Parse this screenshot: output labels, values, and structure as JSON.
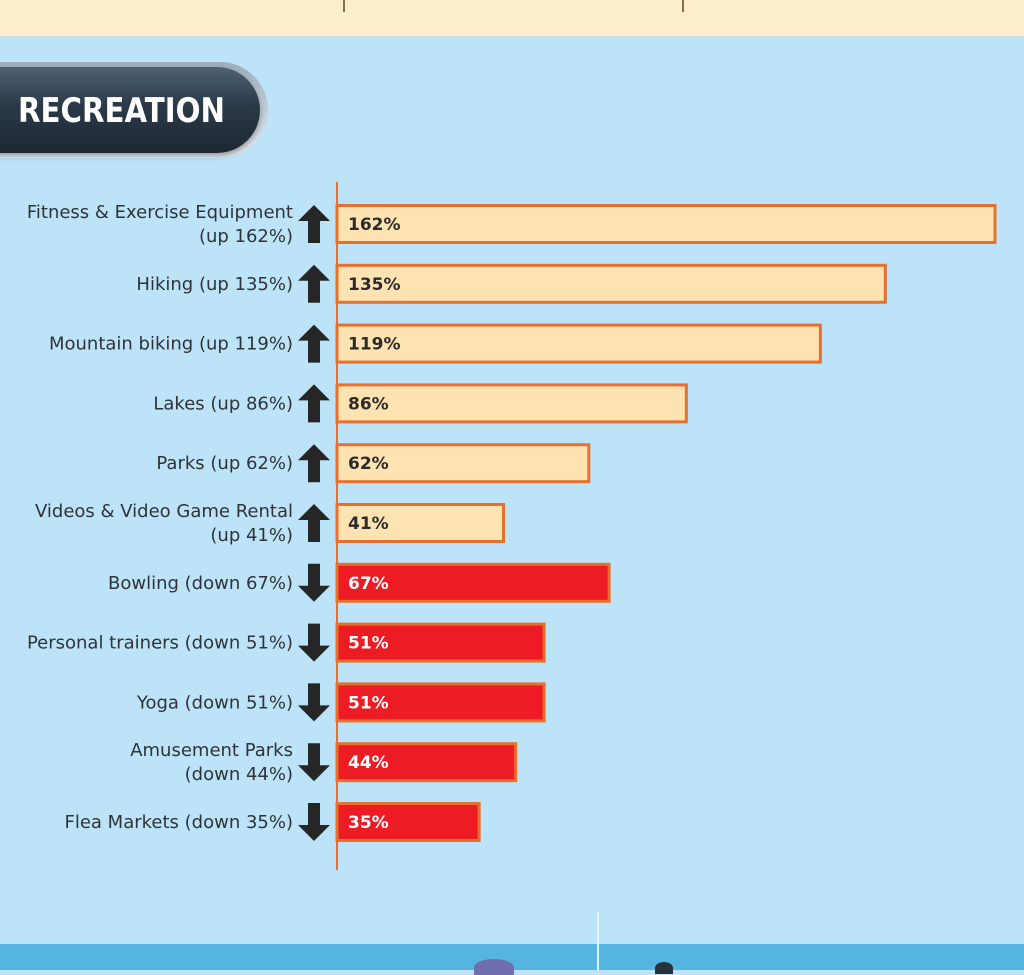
{
  "section": {
    "title": "RECREATION"
  },
  "colors": {
    "background": "#bde3f8",
    "up_fill": "#fde2b2",
    "down_fill": "#ed1c24",
    "bar_stroke": "#e8702e",
    "axis": "#e8702e",
    "arrow": "#262626",
    "up_text": "#2b2b2b",
    "down_text": "#ffffff"
  },
  "chart_data": {
    "type": "bar",
    "orientation": "horizontal",
    "title": "RECREATION",
    "xlim": [
      0,
      162
    ],
    "grid": false,
    "categories": [
      {
        "label": [
          "Fitness & Exercise Equipment",
          "(up 162%)"
        ],
        "value": 162,
        "direction": "up",
        "value_label": "162%"
      },
      {
        "label": [
          "Hiking (up 135%)"
        ],
        "value": 135,
        "direction": "up",
        "value_label": "135%"
      },
      {
        "label": [
          "Mountain biking (up 119%)"
        ],
        "value": 119,
        "direction": "up",
        "value_label": "119%"
      },
      {
        "label": [
          "Lakes (up 86%)"
        ],
        "value": 86,
        "direction": "up",
        "value_label": "86%"
      },
      {
        "label": [
          "Parks (up 62%)"
        ],
        "value": 62,
        "direction": "up",
        "value_label": "62%"
      },
      {
        "label": [
          "Videos & Video Game Rental",
          "(up 41%)"
        ],
        "value": 41,
        "direction": "up",
        "value_label": "41%"
      },
      {
        "label": [
          "Bowling (down 67%)"
        ],
        "value": 67,
        "direction": "down",
        "value_label": "67%"
      },
      {
        "label": [
          "Personal trainers (down 51%)"
        ],
        "value": 51,
        "direction": "down",
        "value_label": "51%"
      },
      {
        "label": [
          "Yoga (down 51%)"
        ],
        "value": 51,
        "direction": "down",
        "value_label": "51%"
      },
      {
        "label": [
          "Amusement Parks",
          "(down 44%)"
        ],
        "value": 44,
        "direction": "down",
        "value_label": "44%"
      },
      {
        "label": [
          "Flea Markets (down 35%)"
        ],
        "value": 35,
        "direction": "down",
        "value_label": "35%"
      }
    ]
  }
}
